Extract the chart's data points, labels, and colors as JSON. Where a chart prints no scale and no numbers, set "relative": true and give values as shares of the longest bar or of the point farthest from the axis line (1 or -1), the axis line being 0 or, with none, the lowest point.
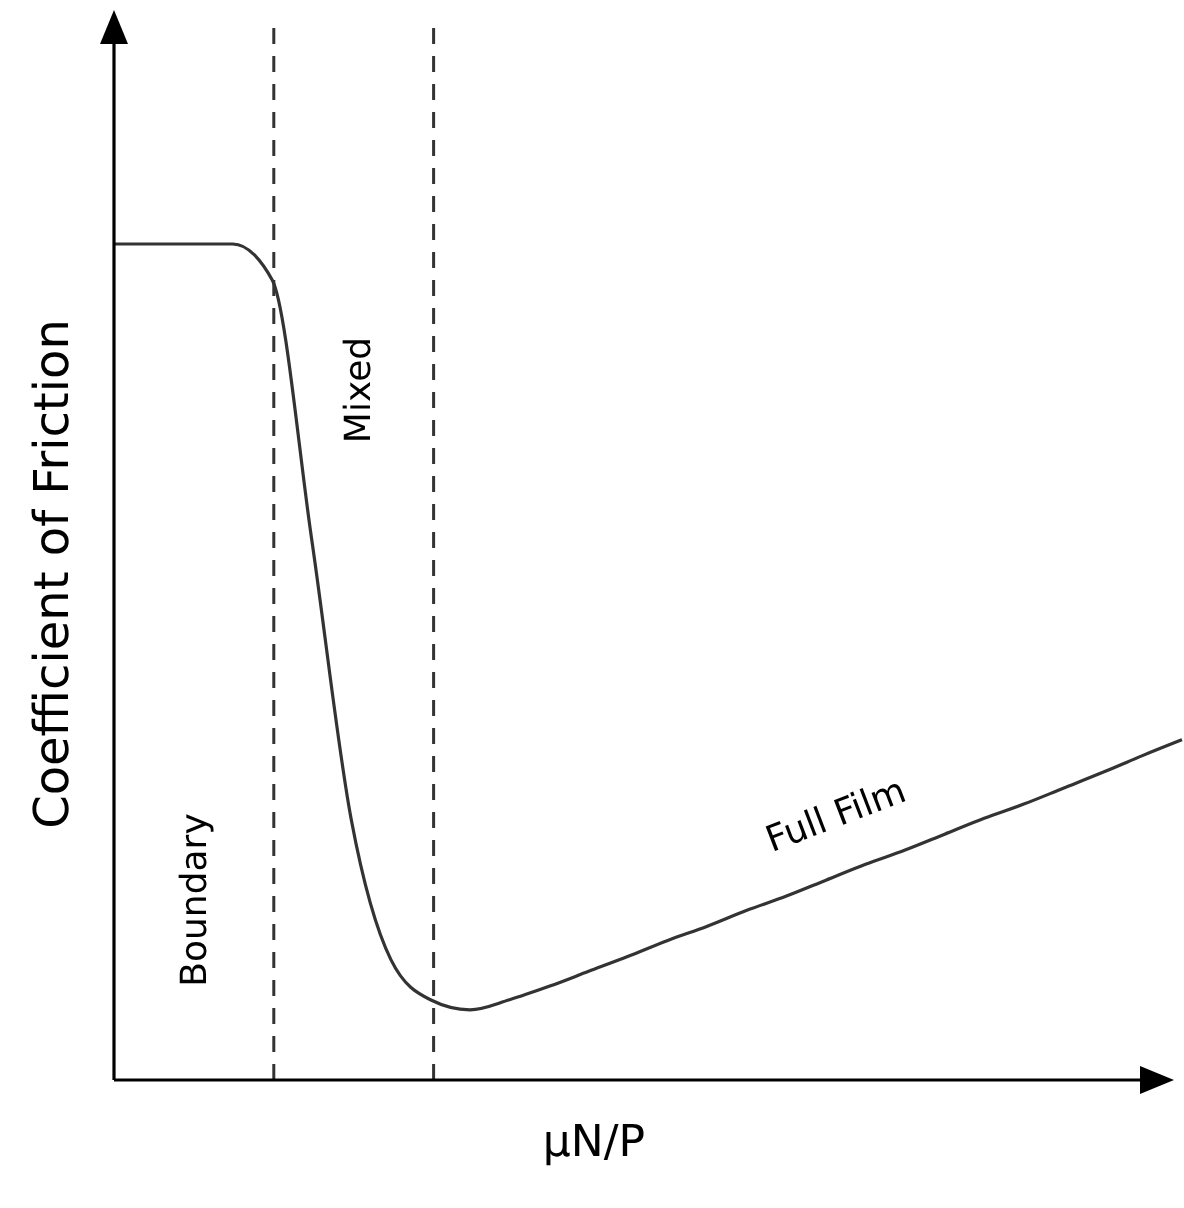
{
  "chart_data": {
    "type": "line",
    "relative": true,
    "ylabel": "Coefficient of Friction",
    "xlabel": "μN/P",
    "categories": [
      null,
      null,
      null,
      null,
      null,
      null,
      null,
      null,
      null,
      null,
      null,
      null,
      null,
      null,
      null,
      null,
      null,
      null,
      null,
      null,
      null,
      null,
      null,
      null,
      null,
      null,
      null,
      null
    ],
    "series": [
      {
        "color": "#333333",
        "values": [
          1,
          1,
          1,
          1,
          0.957,
          0.646,
          0.311,
          0.144,
          0.096,
          0.084,
          0.096,
          0.112,
          0.13,
          0.148,
          0.167,
          0.184,
          0.203,
          0.22,
          0.239,
          0.258,
          0.275,
          0.294,
          0.313,
          0.33,
          0.349,
          0.368,
          0.388,
          0.407
        ]
      }
    ],
    "annotations": [
      "Boundary",
      "Mixed",
      "Full Film"
    ],
    "marker": "none",
    "line_style": "solid",
    "grid": false
  }
}
